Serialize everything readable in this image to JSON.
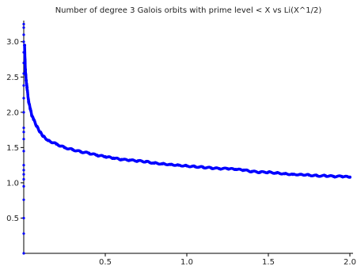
{
  "chart_data": {
    "type": "scatter",
    "title": "Number of degree 3 Galois orbits with prime level < X vs Li(X^1/2)",
    "xlabel": "",
    "ylabel": "",
    "xlim": [
      0,
      2.0
    ],
    "ylim": [
      0,
      3.3
    ],
    "x_ticks": [
      0.5,
      1.0,
      1.5,
      2.0
    ],
    "x_tick_labels": [
      "0.5",
      "1.0",
      "1.5",
      "2.0"
    ],
    "y_ticks": [
      0.5,
      1.0,
      1.5,
      2.0,
      2.5,
      3.0
    ],
    "y_tick_labels": [
      "0.5",
      "1.0",
      "1.5",
      "2.0",
      "2.5",
      "3.0"
    ],
    "grid": false,
    "legend": "none",
    "marker_color": "#0000ff",
    "series": [
      {
        "x_vertical_scatter": 0.0,
        "y_vertical_scatter": [
          0.0,
          0.28,
          0.5,
          0.76,
          0.95,
          1.05,
          1.12,
          1.18,
          1.25,
          1.45,
          1.62,
          1.72,
          1.78,
          2.0,
          2.2,
          2.38,
          2.55,
          2.7,
          2.85,
          3.0,
          3.1,
          3.2,
          3.25
        ],
        "x": [
          0.005,
          0.01,
          0.015,
          0.02,
          0.03,
          0.04,
          0.05,
          0.06,
          0.08,
          0.1,
          0.12,
          0.15,
          0.2,
          0.25,
          0.3,
          0.35,
          0.4,
          0.45,
          0.5,
          0.55,
          0.6,
          0.65,
          0.7,
          0.75,
          0.8,
          0.85,
          0.9,
          0.95,
          1.0,
          1.05,
          1.1,
          1.15,
          1.2,
          1.25,
          1.3,
          1.35,
          1.4,
          1.45,
          1.5,
          1.55,
          1.6,
          1.65,
          1.7,
          1.75,
          1.8,
          1.85,
          1.9,
          1.95,
          2.0
        ],
        "y": [
          2.95,
          2.6,
          2.45,
          2.35,
          2.15,
          2.05,
          1.95,
          1.9,
          1.8,
          1.72,
          1.66,
          1.6,
          1.55,
          1.5,
          1.47,
          1.44,
          1.42,
          1.39,
          1.37,
          1.35,
          1.33,
          1.32,
          1.31,
          1.3,
          1.28,
          1.27,
          1.26,
          1.25,
          1.24,
          1.23,
          1.22,
          1.21,
          1.2,
          1.2,
          1.19,
          1.18,
          1.16,
          1.15,
          1.15,
          1.14,
          1.13,
          1.12,
          1.12,
          1.11,
          1.1,
          1.1,
          1.09,
          1.09,
          1.08
        ]
      }
    ]
  }
}
